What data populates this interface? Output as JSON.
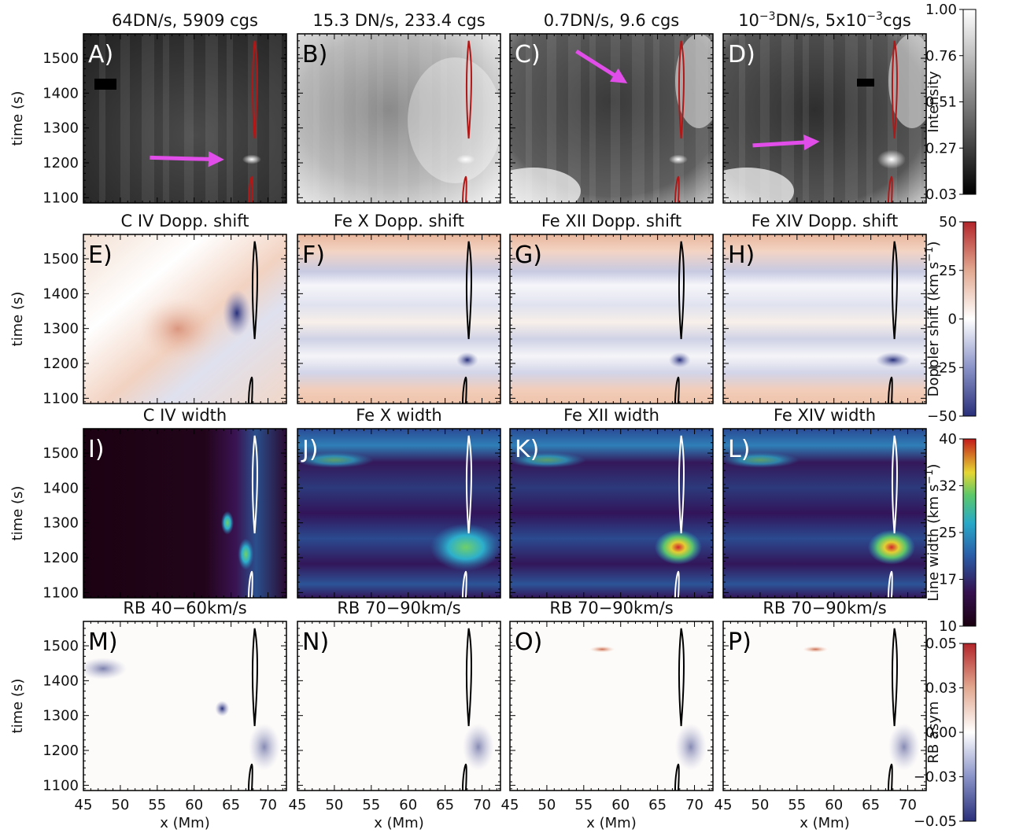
{
  "chart_data": {
    "type": "heatmap",
    "layout": "4x4 grid of x-t maps with colorbar per row",
    "xlabel": "x (Mm)",
    "ylabel": "time (s)",
    "xlim": [
      45,
      72.5
    ],
    "ylim": [
      1085,
      1570
    ],
    "x_ticks": [
      "45",
      "50",
      "55",
      "60",
      "65",
      "70"
    ],
    "y_ticks": [
      "1500",
      "1400",
      "1300",
      "1200",
      "1100"
    ],
    "rows": [
      {
        "name": "intensity",
        "panels": [
          {
            "label": "A)",
            "title": "64DN/s, 5909 cgs"
          },
          {
            "label": "B)",
            "title": "15.3 DN/s, 233.4 cgs"
          },
          {
            "label": "C)",
            "title": "0.7DN/s, 9.6 cgs"
          },
          {
            "label": "D)",
            "title_parts": [
              "10",
              "−3",
              "DN/s, 5x10",
              "−3",
              "cgs"
            ]
          }
        ],
        "colorbar": {
          "label": "Intensity",
          "ticks": [
            "1.00",
            "0.76",
            "0.51",
            "0.27",
            "0.03"
          ],
          "colormap": "grayscale"
        }
      },
      {
        "name": "doppler",
        "panels": [
          {
            "label": "E)",
            "title": "C IV Dopp. shift"
          },
          {
            "label": "F)",
            "title": "Fe X Dopp. shift"
          },
          {
            "label": "G)",
            "title": "Fe XII Dopp. shift"
          },
          {
            "label": "H)",
            "title": "Fe XIV Dopp. shift"
          }
        ],
        "colorbar": {
          "label": "Doppler shift (km s",
          "label_sup": "−1",
          "label_end": ")",
          "ticks": [
            "50",
            "25",
            "0",
            "−25",
            "−50"
          ],
          "colormap": "red-white-blue"
        }
      },
      {
        "name": "width",
        "panels": [
          {
            "label": "I)",
            "title": "C IV width"
          },
          {
            "label": "J)",
            "title": "Fe X width"
          },
          {
            "label": "K)",
            "title": "Fe XII width"
          },
          {
            "label": "L)",
            "title": "Fe XIV width"
          }
        ],
        "colorbar": {
          "label": "Line width (km s",
          "label_sup": "−1",
          "label_end": ")",
          "ticks": [
            "40",
            "32",
            "25",
            "17",
            "10"
          ],
          "colormap": "dark-blue-green-yellow-red"
        }
      },
      {
        "name": "rb",
        "panels": [
          {
            "label": "M)",
            "title": "RB 40−60km/s"
          },
          {
            "label": "N)",
            "title": "RB 70−90km/s"
          },
          {
            "label": "O)",
            "title": "RB 70−90km/s"
          },
          {
            "label": "P)",
            "title": "RB 70−90km/s"
          }
        ],
        "colorbar": {
          "label": "RB asym",
          "ticks": [
            "0.05",
            "0.03",
            "0.00",
            "−0.03",
            "−0.05"
          ],
          "colormap": "red-white-blue"
        }
      }
    ],
    "contours": {
      "upper": {
        "x_center": 68.3,
        "t_range": [
          1270,
          1550
        ]
      },
      "lower": {
        "x_center": 67.7,
        "t_range": [
          1085,
          1160
        ]
      }
    },
    "arrows": [
      {
        "panel": "A)",
        "from": [
          54,
          1215
        ],
        "to": [
          63,
          1210
        ]
      },
      {
        "panel": "C)",
        "from": [
          54,
          1520
        ],
        "to": [
          60,
          1440
        ]
      },
      {
        "panel": "D)",
        "from": [
          49,
          1250
        ],
        "to": [
          57,
          1260
        ]
      }
    ]
  },
  "colors": {
    "arrow": "#e14de8",
    "contour_intensity": "#b01818",
    "contour_dark": "#000000",
    "contour_light": "#ffffff"
  }
}
